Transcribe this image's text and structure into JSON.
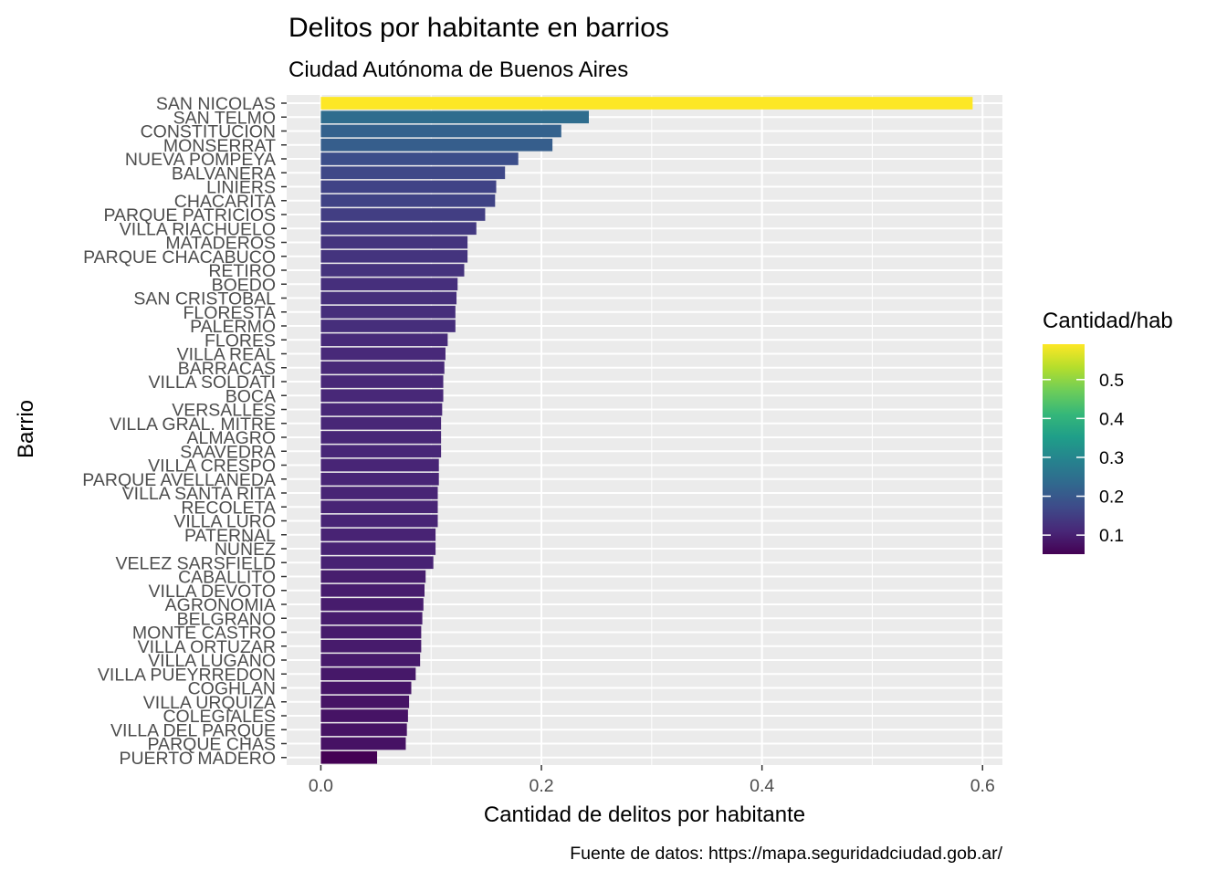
{
  "chart_data": {
    "type": "bar",
    "orientation": "horizontal",
    "title": "Delitos por habitante en barrios",
    "subtitle": "Ciudad Autónoma de Buenos Aires",
    "xlabel": "Cantidad de delitos por habitante",
    "ylabel": "Barrio",
    "caption": "Fuente de datos: https://mapa.seguridadciudad.gob.ar/",
    "xlim": [
      -0.031,
      0.618
    ],
    "xticks": [
      0.0,
      0.2,
      0.4,
      0.6
    ],
    "xtick_labels": [
      "0.0",
      "0.2",
      "0.4",
      "0.6"
    ],
    "grid": true,
    "panel_background": "#ebebeb",
    "legend": {
      "title": "Cantidad/hab",
      "placement": "right",
      "type": "colorbar",
      "palette": "viridis",
      "range": [
        0.051,
        0.591
      ],
      "breaks": [
        0.1,
        0.2,
        0.3,
        0.4,
        0.5
      ],
      "break_labels": [
        "0.1",
        "0.2",
        "0.3",
        "0.4",
        "0.5"
      ],
      "colors": [
        "#440154",
        "#482878",
        "#3E4A89",
        "#31688E",
        "#26828E",
        "#1F9E89",
        "#35B779",
        "#6DCD59",
        "#B4DE2C",
        "#FDE725"
      ]
    },
    "categories": [
      "SAN NICOLAS",
      "SAN TELMO",
      "CONSTITUCION",
      "MONSERRAT",
      "NUEVA POMPEYA",
      "BALVANERA",
      "LINIERS",
      "CHACARITA",
      "PARQUE PATRICIOS",
      "VILLA RIACHUELO",
      "MATADEROS",
      "PARQUE CHACABUCO",
      "RETIRO",
      "BOEDO",
      "SAN CRISTOBAL",
      "FLORESTA",
      "PALERMO",
      "FLORES",
      "VILLA REAL",
      "BARRACAS",
      "VILLA SOLDATI",
      "BOCA",
      "VERSALLES",
      "VILLA GRAL. MITRE",
      "ALMAGRO",
      "SAAVEDRA",
      "VILLA CRESPO",
      "PARQUE AVELLANEDA",
      "VILLA SANTA RITA",
      "RECOLETA",
      "VILLA LURO",
      "PATERNAL",
      "NUÑEZ",
      "VELEZ SARSFIELD",
      "CABALLITO",
      "VILLA DEVOTO",
      "AGRONOMIA",
      "BELGRANO",
      "MONTE CASTRO",
      "VILLA ORTUZAR",
      "VILLA LUGANO",
      "VILLA PUEYRREDON",
      "COGHLAN",
      "VILLA URQUIZA",
      "COLEGIALES",
      "VILLA DEL PARQUE",
      "PARQUE CHAS",
      "PUERTO MADERO"
    ],
    "values": [
      0.591,
      0.243,
      0.218,
      0.21,
      0.179,
      0.167,
      0.159,
      0.158,
      0.149,
      0.141,
      0.133,
      0.133,
      0.13,
      0.124,
      0.123,
      0.122,
      0.122,
      0.115,
      0.113,
      0.112,
      0.111,
      0.111,
      0.11,
      0.109,
      0.109,
      0.109,
      0.107,
      0.107,
      0.106,
      0.106,
      0.106,
      0.104,
      0.104,
      0.102,
      0.095,
      0.094,
      0.093,
      0.092,
      0.091,
      0.091,
      0.09,
      0.086,
      0.082,
      0.08,
      0.079,
      0.078,
      0.077,
      0.051
    ]
  }
}
